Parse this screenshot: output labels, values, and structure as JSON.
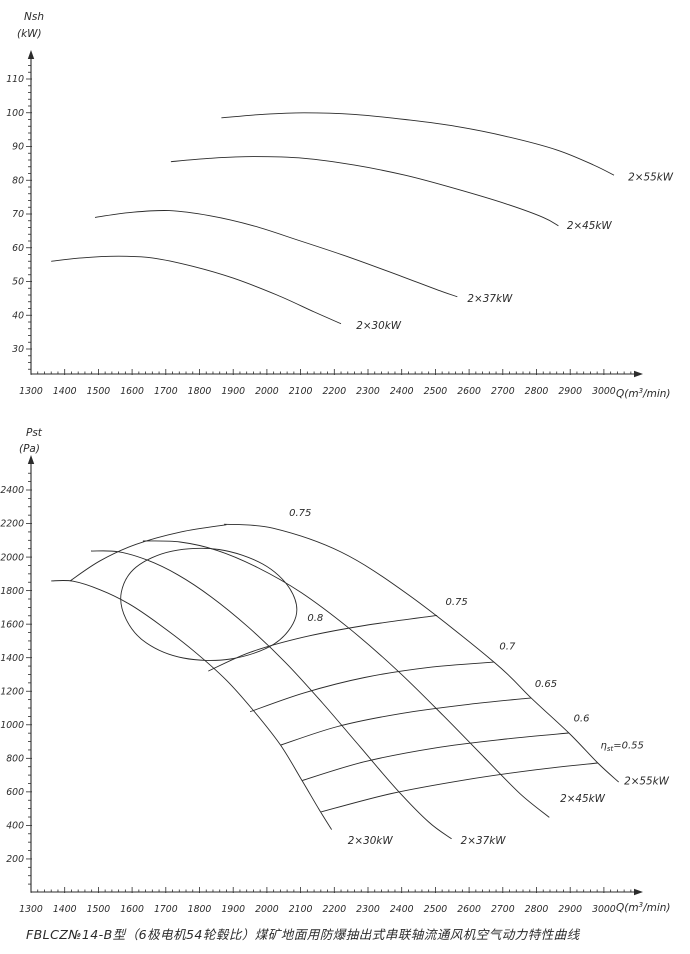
{
  "colors": {
    "ink": "#2b2b2b",
    "background": "#ffffff"
  },
  "caption": "FBLCZ№14-B型（6极电机54轮毂比）煤矿地面用防爆抽出式串联轴流通风机空气动力特性曲线",
  "chart_data": [
    {
      "id": "power-chart",
      "type": "line",
      "title": "",
      "ylabel_lines": [
        "Nsh",
        "(kW)"
      ],
      "xlabel": {
        "pre": "Q(m",
        "sup": "3",
        "post": "/min)"
      },
      "x_ticks": [
        1300,
        1400,
        1500,
        1600,
        1700,
        1800,
        1900,
        2000,
        2100,
        2200,
        2300,
        2400,
        2500,
        2600,
        2700,
        2800,
        2900,
        3000
      ],
      "y_ticks": [
        30,
        40,
        50,
        60,
        70,
        80,
        90,
        100,
        110
      ],
      "xlim": [
        1300,
        3100
      ],
      "ylim": [
        22,
        118
      ],
      "grid": false,
      "legend_position": "none",
      "series": [
        {
          "id": "n30",
          "name": "2×30kW",
          "points": [
            [
              1360,
              56
            ],
            [
              1450,
              57
            ],
            [
              1560,
              57.5
            ],
            [
              1660,
              57
            ],
            [
              1780,
              54.5
            ],
            [
              1900,
              51
            ],
            [
              2030,
              46
            ],
            [
              2140,
              41
            ],
            [
              2220,
              37.5
            ]
          ]
        },
        {
          "id": "n37",
          "name": "2×37kW",
          "points": [
            [
              1490,
              69
            ],
            [
              1600,
              70.5
            ],
            [
              1710,
              71
            ],
            [
              1830,
              69.5
            ],
            [
              1960,
              66.5
            ],
            [
              2100,
              62
            ],
            [
              2250,
              57
            ],
            [
              2400,
              51.5
            ],
            [
              2520,
              47
            ],
            [
              2565,
              45.5
            ]
          ]
        },
        {
          "id": "n45",
          "name": "2×45kW",
          "points": [
            [
              1715,
              85.5
            ],
            [
              1830,
              86.5
            ],
            [
              1960,
              87
            ],
            [
              2110,
              86.5
            ],
            [
              2260,
              84.5
            ],
            [
              2410,
              81.5
            ],
            [
              2560,
              77.5
            ],
            [
              2710,
              73
            ],
            [
              2820,
              69
            ],
            [
              2865,
              66.5
            ]
          ]
        },
        {
          "id": "n55",
          "name": "2×55kW",
          "points": [
            [
              1865,
              98.5
            ],
            [
              1985,
              99.5
            ],
            [
              2110,
              100
            ],
            [
              2260,
              99.5
            ],
            [
              2410,
              98
            ],
            [
              2560,
              96
            ],
            [
              2710,
              93
            ],
            [
              2860,
              89
            ],
            [
              2970,
              84.5
            ],
            [
              3030,
              81.5
            ]
          ]
        }
      ],
      "labels": [
        {
          "id": "lbl-n30",
          "text": "2×30kW",
          "q": 2265,
          "v": 36.0,
          "cls": "curve-label"
        },
        {
          "id": "lbl-n37",
          "text": "2×37kW",
          "q": 2595,
          "v": 44.0,
          "cls": "curve-label"
        },
        {
          "id": "lbl-n45",
          "text": "2×45kW",
          "q": 2890,
          "v": 65.5,
          "cls": "curve-label"
        },
        {
          "id": "lbl-n55",
          "text": "2×55kW",
          "q": 3072,
          "v": 80.0,
          "cls": "curve-label"
        }
      ]
    },
    {
      "id": "pressure-chart",
      "type": "line",
      "title": "",
      "ylabel_lines": [
        "Pst",
        "(Pa)"
      ],
      "xlabel": {
        "pre": "Q(m",
        "sup": "3",
        "post": "/min)"
      },
      "x_ticks": [
        1300,
        1400,
        1500,
        1600,
        1700,
        1800,
        1900,
        2000,
        2100,
        2200,
        2300,
        2400,
        2500,
        2600,
        2700,
        2800,
        2900,
        3000
      ],
      "y_ticks": [
        200,
        400,
        600,
        800,
        1000,
        1200,
        1400,
        1600,
        1800,
        2000,
        2200,
        2400
      ],
      "xlim": [
        1300,
        3100
      ],
      "ylim": [
        0,
        2600
      ],
      "grid": false,
      "legend_position": "none",
      "series": [
        {
          "id": "p30",
          "name": "2×30kW",
          "points": [
            [
              1360,
              1858
            ],
            [
              1425,
              1856
            ],
            [
              1505,
              1805
            ],
            [
              1590,
              1722
            ],
            [
              1680,
              1600
            ],
            [
              1780,
              1445
            ],
            [
              1880,
              1265
            ],
            [
              1960,
              1085
            ],
            [
              2040,
              880
            ],
            [
              2105,
              665
            ],
            [
              2155,
              495
            ],
            [
              2192,
              375
            ]
          ]
        },
        {
          "id": "p37",
          "name": "2×37kW",
          "points": [
            [
              1478,
              2036
            ],
            [
              1558,
              2032
            ],
            [
              1645,
              1982
            ],
            [
              1735,
              1895
            ],
            [
              1835,
              1762
            ],
            [
              1945,
              1582
            ],
            [
              2055,
              1372
            ],
            [
              2165,
              1130
            ],
            [
              2275,
              872
            ],
            [
              2385,
              615
            ],
            [
              2480,
              420
            ],
            [
              2548,
              320
            ]
          ]
        },
        {
          "id": "p45",
          "name": "2×45kW",
          "points": [
            [
              1632,
              2096
            ],
            [
              1742,
              2090
            ],
            [
              1852,
              2040
            ],
            [
              1972,
              1938
            ],
            [
              2102,
              1788
            ],
            [
              2242,
              1578
            ],
            [
              2385,
              1328
            ],
            [
              2522,
              1058
            ],
            [
              2645,
              805
            ],
            [
              2752,
              588
            ],
            [
              2838,
              448
            ]
          ]
        },
        {
          "id": "p55",
          "name": "2×55kW",
          "points": [
            [
              1873,
              2196
            ],
            [
              2018,
              2172
            ],
            [
              2220,
              2030
            ],
            [
              2420,
              1775
            ],
            [
              2674,
              1374
            ],
            [
              2784,
              1160
            ],
            [
              2896,
              951
            ],
            [
              2982,
              772
            ],
            [
              3044,
              658
            ]
          ]
        },
        {
          "id": "envelope",
          "name": "surge-boundary",
          "points": [
            [
              1416,
              1858
            ],
            [
              1505,
              1978
            ],
            [
              1612,
              2076
            ],
            [
              1745,
              2150
            ],
            [
              1880,
              2193
            ]
          ]
        },
        {
          "id": "eff-0.8",
          "name": "η=0.8 contour",
          "closed": true,
          "points": [
            [
              1568,
              1790
            ],
            [
              1612,
              1940
            ],
            [
              1718,
              2035
            ],
            [
              1858,
              2045
            ],
            [
              1988,
              1958
            ],
            [
              2068,
              1812
            ],
            [
              2086,
              1645
            ],
            [
              2022,
              1482
            ],
            [
              1892,
              1392
            ],
            [
              1752,
              1398
            ],
            [
              1642,
              1488
            ],
            [
              1582,
              1630
            ]
          ]
        },
        {
          "id": "eff-0.75",
          "name": "η=0.75 contour",
          "points": [
            [
              1826,
              1320
            ],
            [
              1950,
              1432
            ],
            [
              2108,
              1522
            ],
            [
              2290,
              1592
            ],
            [
              2505,
              1652
            ]
          ]
        },
        {
          "id": "eff-0.7",
          "name": "η=0.7 contour",
          "points": [
            [
              1950,
              1078
            ],
            [
              2110,
              1190
            ],
            [
              2290,
              1282
            ],
            [
              2480,
              1342
            ],
            [
              2674,
              1374
            ]
          ]
        },
        {
          "id": "eff-0.65",
          "name": "η=0.65 contour",
          "points": [
            [
              2040,
              878
            ],
            [
              2210,
              990
            ],
            [
              2400,
              1068
            ],
            [
              2600,
              1122
            ],
            [
              2784,
              1160
            ]
          ]
        },
        {
          "id": "eff-0.6",
          "name": "η=0.6 contour",
          "points": [
            [
              2105,
              668
            ],
            [
              2290,
              780
            ],
            [
              2500,
              862
            ],
            [
              2710,
              915
            ],
            [
              2896,
              951
            ]
          ]
        },
        {
          "id": "eff-0.55",
          "name": "η=0.55 contour",
          "points": [
            [
              2160,
              480
            ],
            [
              2370,
              590
            ],
            [
              2590,
              672
            ],
            [
              2800,
              732
            ],
            [
              2982,
              772
            ]
          ]
        }
      ],
      "labels": [
        {
          "id": "lbl-eff075-top",
          "text": "0.75",
          "q": 2066,
          "v": 2245,
          "cls": "eff-label"
        },
        {
          "id": "lbl-eff08",
          "text": "0.8",
          "q": 2120,
          "v": 1620,
          "cls": "eff-label"
        },
        {
          "id": "lbl-eff075-right",
          "text": "0.75",
          "q": 2530,
          "v": 1715,
          "cls": "eff-label"
        },
        {
          "id": "lbl-eff07",
          "text": "0.7",
          "q": 2690,
          "v": 1450,
          "cls": "eff-label"
        },
        {
          "id": "lbl-eff065",
          "text": "0.65",
          "q": 2795,
          "v": 1225,
          "cls": "eff-label"
        },
        {
          "id": "lbl-eff06",
          "text": "0.6",
          "q": 2910,
          "v": 1020,
          "cls": "eff-label"
        },
        {
          "id": "lbl-eff055",
          "pre": "η",
          "sub": "st",
          "post": "=0.55",
          "q": 2990,
          "v": 860,
          "cls": "eff-label"
        },
        {
          "id": "lbl-p30",
          "text": "2×30kW",
          "q": 2240,
          "v": 290,
          "cls": "curve-label"
        },
        {
          "id": "lbl-p37",
          "text": "2×37kW",
          "q": 2575,
          "v": 290,
          "cls": "curve-label"
        },
        {
          "id": "lbl-p45",
          "text": "2×45kW",
          "q": 2870,
          "v": 540,
          "cls": "curve-label"
        },
        {
          "id": "lbl-p55",
          "text": "2×55kW",
          "q": 3060,
          "v": 645,
          "cls": "curve-label"
        }
      ]
    }
  ]
}
